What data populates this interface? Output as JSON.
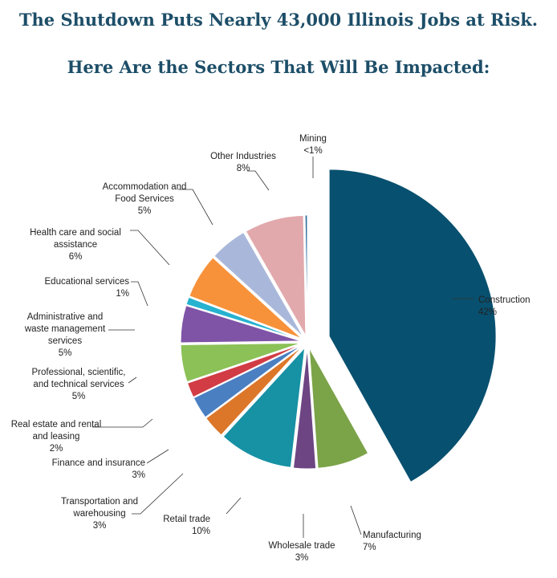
{
  "chart_data": {
    "type": "pie",
    "title": "The Shutdown Puts Nearly 43,000 Illinois Jobs at Risk.",
    "subtitle": "Here Are the Sectors That Will Be Impacted:",
    "slices": [
      {
        "label": "Construction",
        "label_lines": [
          "Construction"
        ],
        "value_label": "42%",
        "value": 42,
        "color": "#08506f"
      },
      {
        "label": "Manufacturing",
        "label_lines": [
          "Manufacturing"
        ],
        "value_label": "7%",
        "value": 7,
        "color": "#7ba348"
      },
      {
        "label": "Wholesale trade",
        "label_lines": [
          "Wholesale trade"
        ],
        "value_label": "3%",
        "value": 3,
        "color": "#6d4583"
      },
      {
        "label": "Retail trade",
        "label_lines": [
          "Retail trade"
        ],
        "value_label": "10%",
        "value": 10,
        "color": "#1791a4"
      },
      {
        "label": "Transportation and warehousing",
        "label_lines": [
          "Transportation and",
          "warehousing"
        ],
        "value_label": "3%",
        "value": 3,
        "color": "#dc772a"
      },
      {
        "label": "Finance and insurance",
        "label_lines": [
          "Finance and insurance"
        ],
        "value_label": "3%",
        "value": 3,
        "color": "#4a7fc2"
      },
      {
        "label": "Real estate and rental and leasing",
        "label_lines": [
          "Real estate and rental",
          "and leasing"
        ],
        "value_label": "2%",
        "value": 2,
        "color": "#d13c45"
      },
      {
        "label": "Professional, scientific, and technical services",
        "label_lines": [
          "Professional, scientific,",
          "and technical services"
        ],
        "value_label": "5%",
        "value": 5,
        "color": "#8bc156"
      },
      {
        "label": "Administrative and waste management services",
        "label_lines": [
          "Administrative and",
          "waste management",
          "services"
        ],
        "value_label": "5%",
        "value": 5,
        "color": "#7f54a6"
      },
      {
        "label": "Educational services",
        "label_lines": [
          "Educational services"
        ],
        "value_label": "1%",
        "value": 1,
        "color": "#27b2cf"
      },
      {
        "label": "Health care and social assistance",
        "label_lines": [
          "Health care and social",
          "assistance"
        ],
        "value_label": "6%",
        "value": 6,
        "color": "#f7923a"
      },
      {
        "label": "Accommodation and Food Services",
        "label_lines": [
          "Accommodation and",
          "Food Services"
        ],
        "value_label": "5%",
        "value": 5,
        "color": "#a9b8da"
      },
      {
        "label": "Other Industries",
        "label_lines": [
          "Other Industries"
        ],
        "value_label": "8%",
        "value": 8,
        "color": "#e2a9ad"
      },
      {
        "label": "Mining",
        "label_lines": [
          "Mining"
        ],
        "value_label": "<1%",
        "value": 0.3,
        "color": "#2f6fa0"
      }
    ],
    "start_angle_deg": 90,
    "direction": "clockwise",
    "exploded": true,
    "legend": "none"
  }
}
